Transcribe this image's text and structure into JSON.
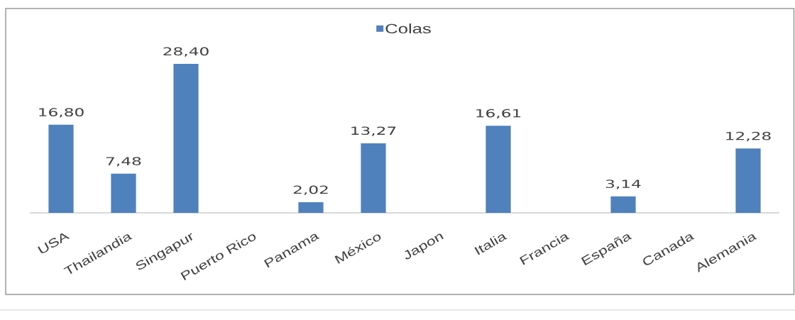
{
  "chart_data": {
    "type": "bar",
    "categories": [
      "USA",
      "Thailandia",
      "Singapur",
      "Puerto Rico",
      "Panama",
      "México",
      "Japon",
      "Italia",
      "Francia",
      "España",
      "Canada",
      "Alemania"
    ],
    "series": [
      {
        "name": "Colas",
        "color": "#4f81bd",
        "values": [
          16.8,
          7.48,
          28.4,
          null,
          2.02,
          13.27,
          null,
          16.61,
          null,
          3.14,
          null,
          12.28
        ],
        "value_labels": [
          "16,80",
          "7,48",
          "28,40",
          null,
          "2,02",
          "13,27",
          null,
          "16,61",
          null,
          "3,14",
          null,
          "12,28"
        ]
      }
    ],
    "legend": "top"
  }
}
